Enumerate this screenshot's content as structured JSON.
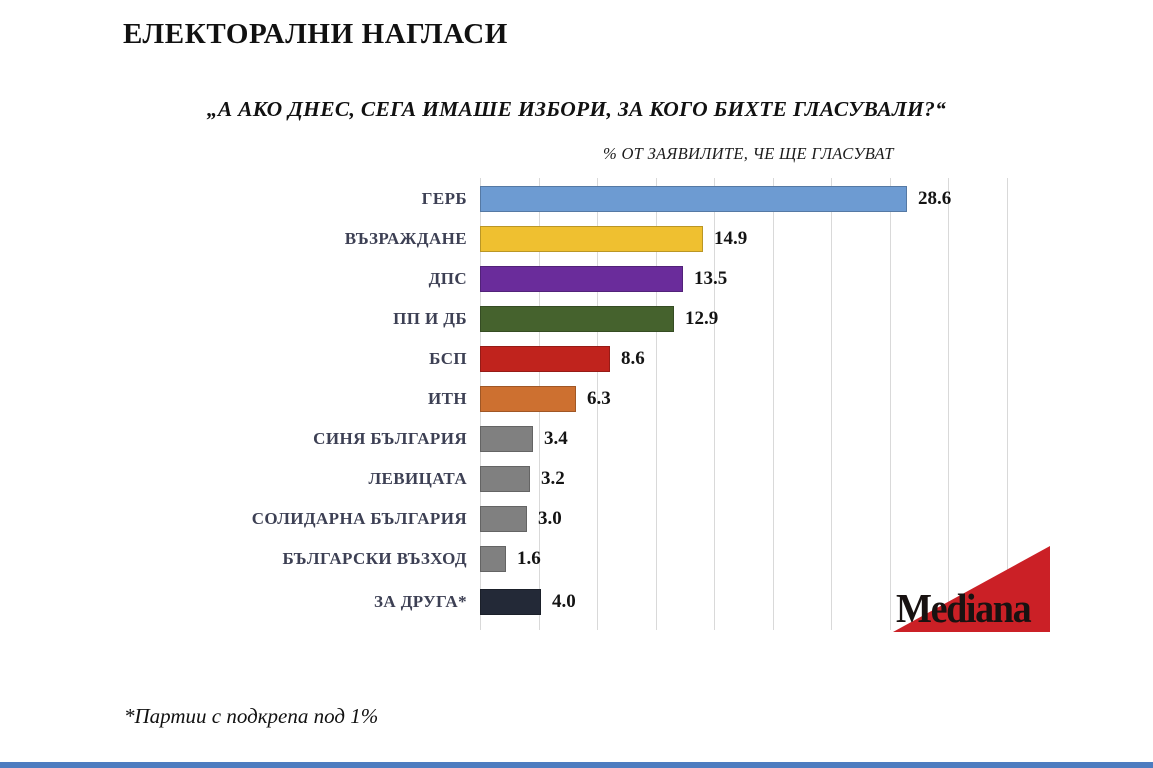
{
  "header": {
    "title": "ЕЛЕКТОРАЛНИ НАГЛАСИ",
    "question": "„А АКО ДНЕС, СЕГА ИМАШЕ ИЗБОРИ, ЗА КОГО БИХТЕ ГЛАСУВАЛИ?“"
  },
  "chart_data": {
    "type": "bar",
    "orientation": "horizontal",
    "subtitle": "% ОТ ЗАЯВИЛИТЕ, ЧЕ ЩЕ ГЛАСУВАТ",
    "categories": [
      "ГЕРБ",
      "ВЪЗРАЖДАНЕ",
      "ДПС",
      "ПП И ДБ",
      "БСП",
      "ИТН",
      "СИНЯ БЪЛГАРИЯ",
      "ЛЕВИЦАТА",
      "СОЛИДАРНА БЪЛГАРИЯ",
      "БЪЛГАРСКИ ВЪЗХОД",
      "ЗА ДРУГА*"
    ],
    "values": [
      28.6,
      14.9,
      13.5,
      12.9,
      8.6,
      6.3,
      3.4,
      3.2,
      3.0,
      1.6,
      4.0
    ],
    "value_labels": [
      "28.6",
      "14.9",
      "13.5",
      "12.9",
      "8.6",
      "6.3",
      "3.4",
      "3.2",
      "3.0",
      "1.6",
      "4.0"
    ],
    "bar_colors": [
      "#6d9bd2",
      "#efc030",
      "#6a2c9b",
      "#45622d",
      "#c0231d",
      "#cd7030",
      "#808080",
      "#808080",
      "#808080",
      "#808080",
      "#232937"
    ],
    "xlim": [
      0,
      35.4
    ],
    "grid": true,
    "gridline_color": "#d9d9d9",
    "legend": "none"
  },
  "footnote": "*Партии с подкрепа под 1%",
  "logo": {
    "text": "Mediana",
    "triangle_color": "#cb2026",
    "text_color": "#181211"
  },
  "bottom_bar_color": "#4d7cc0"
}
